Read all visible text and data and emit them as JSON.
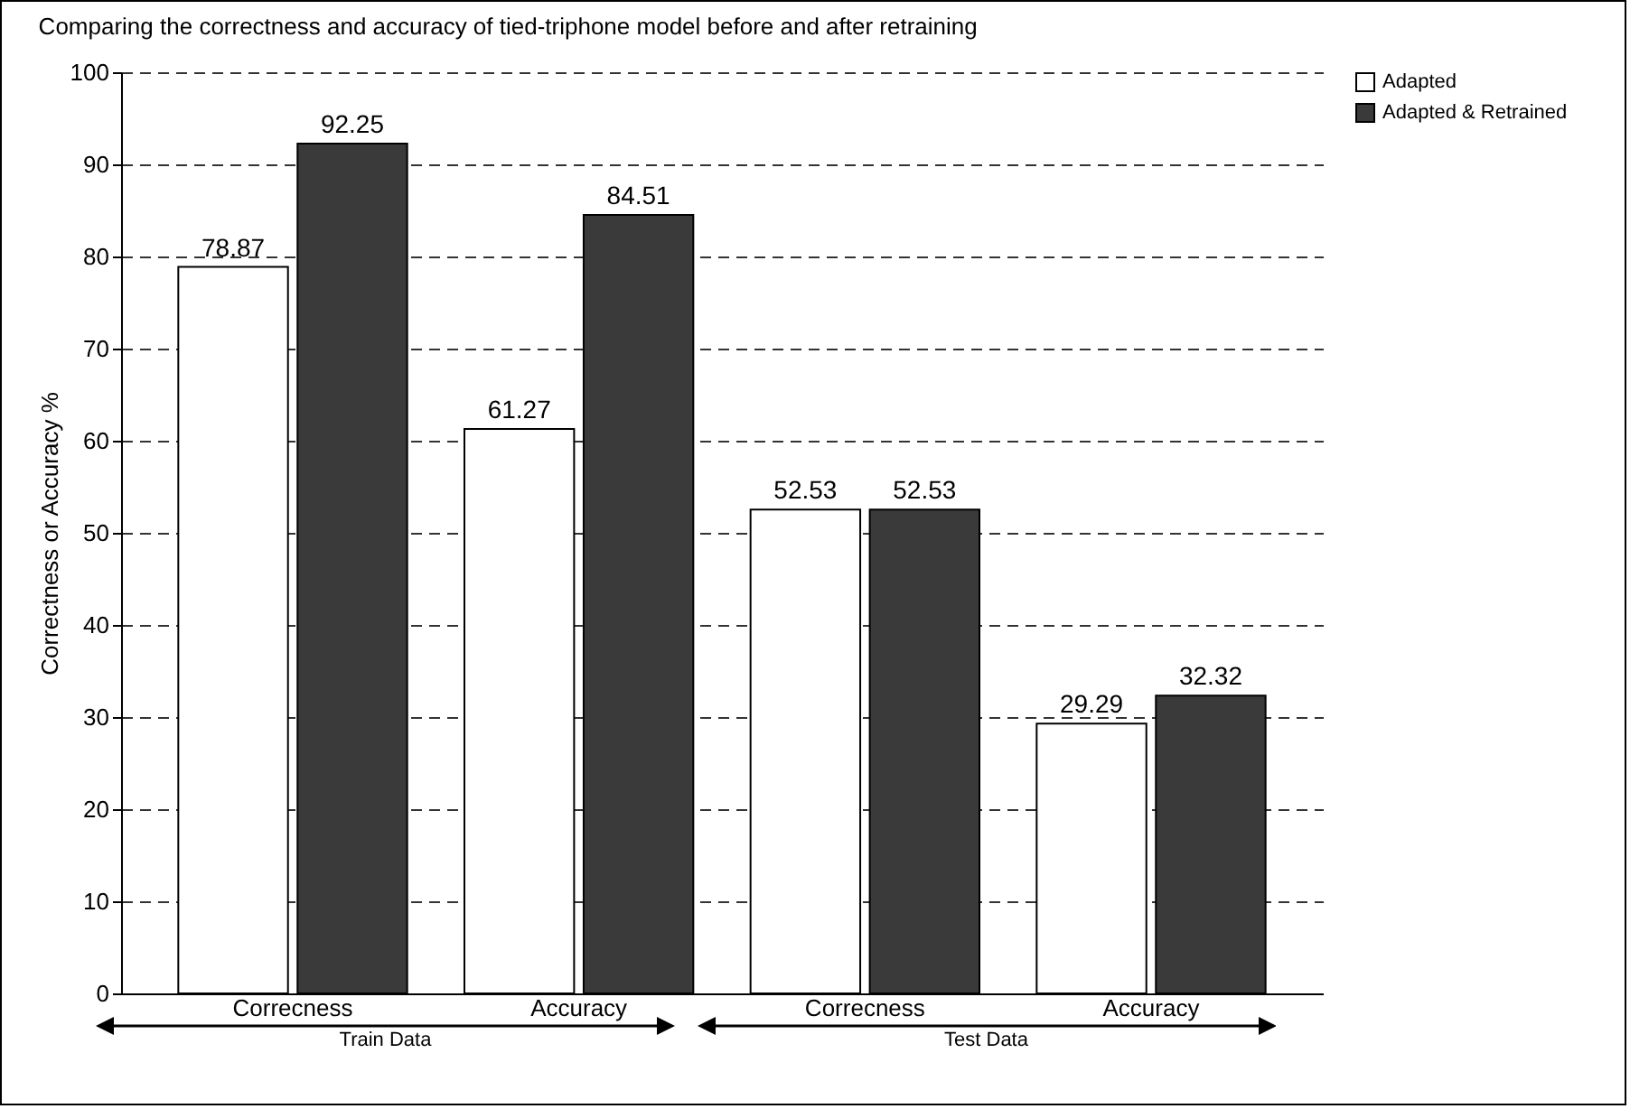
{
  "chart_data": {
    "type": "bar",
    "title": "Comparing the correctness and accuracy of tied-triphone model before and after retraining",
    "ylabel": "Correctness or Accuracy  %",
    "categories": [
      "Correcness",
      "Accuracy",
      "Correcness",
      "Accuracy"
    ],
    "series": [
      {
        "name": "Adapted",
        "color": "#ffffff",
        "values": [
          78.87,
          61.27,
          52.53,
          29.29
        ]
      },
      {
        "name": "Adapted & Retrained",
        "color": "#3a3a3a",
        "values": [
          92.25,
          84.51,
          52.53,
          32.32
        ]
      }
    ],
    "ylim": [
      0,
      100
    ],
    "yticks": [
      0,
      10,
      20,
      30,
      40,
      50,
      60,
      70,
      80,
      90,
      100
    ],
    "grid": "y",
    "legend": "right",
    "data_labels": true,
    "annotations": [
      "Train Data",
      "Test Data"
    ]
  }
}
